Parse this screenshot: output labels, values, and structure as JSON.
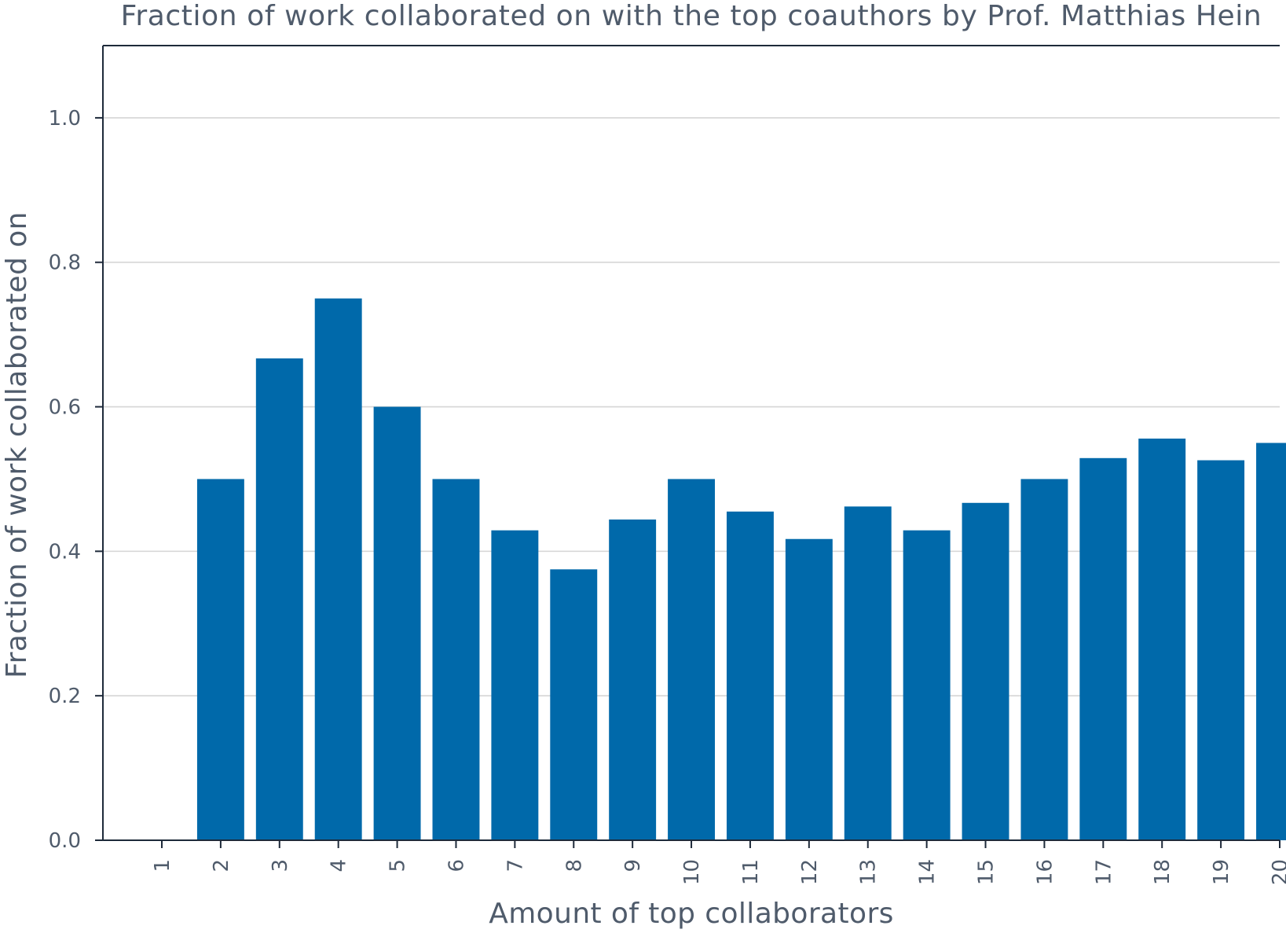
{
  "chart_data": {
    "type": "bar",
    "title": "Fraction of work collaborated on with the top coauthors by Prof. Matthias Hein",
    "xlabel": "Amount of top collaborators",
    "ylabel": "Fraction of work collaborated on",
    "categories": [
      "1",
      "2",
      "3",
      "4",
      "5",
      "6",
      "7",
      "8",
      "9",
      "10",
      "11",
      "12",
      "13",
      "14",
      "15",
      "16",
      "17",
      "18",
      "19",
      "20"
    ],
    "values": [
      0.0,
      0.5,
      0.667,
      0.75,
      0.6,
      0.5,
      0.429,
      0.375,
      0.444,
      0.5,
      0.455,
      0.417,
      0.462,
      0.429,
      0.467,
      0.5,
      0.529,
      0.556,
      0.526,
      0.55
    ],
    "ylim": [
      0,
      1.1
    ],
    "yticks": [
      "0.0",
      "0.2",
      "0.4",
      "0.6",
      "0.8",
      "1.0"
    ],
    "grid": "horizontal",
    "bar_color": "#0069aa",
    "axis_color": "#1e2a3a",
    "grid_color": "#d5d5d5",
    "text_color": "#4f5b6b"
  }
}
